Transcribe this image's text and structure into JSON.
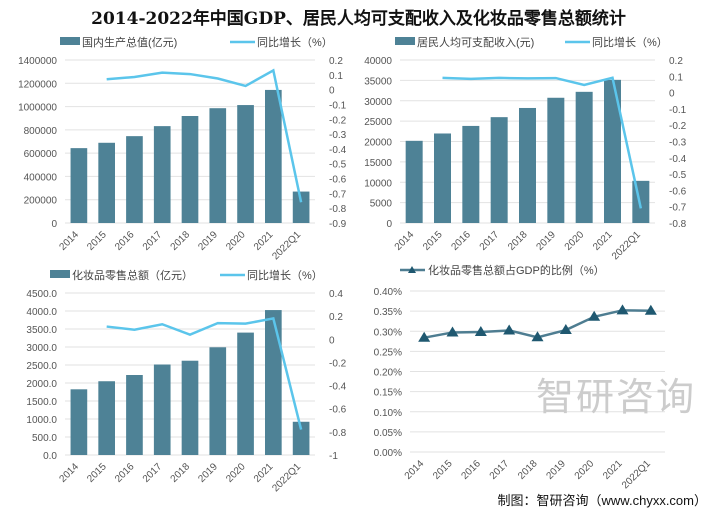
{
  "title": "2014-2022年中国GDP、居民人均可支配收入及化妆品零售总额统计",
  "credit": "制图：智研咨询（www.chyxx.com）",
  "watermark": "智研咨询",
  "colors": {
    "bar": "#4e8296",
    "line": "#5bc5eb",
    "ratio": "#4e7d91",
    "marker": "#1f5870"
  },
  "chart_data": [
    {
      "type": "bar+line",
      "categories": [
        "2014",
        "2015",
        "2016",
        "2017",
        "2018",
        "2019",
        "2020",
        "2021",
        "2022Q1"
      ],
      "bar_series": {
        "name": "国内生产总值(亿元)",
        "values": [
          643000,
          689000,
          746000,
          832000,
          919000,
          986000,
          1013000,
          1143000,
          270000
        ]
      },
      "line_series": {
        "name": "同比增长（%）",
        "values": [
          null,
          0.07,
          0.085,
          0.115,
          0.105,
          0.075,
          0.025,
          0.13,
          -0.76
        ]
      },
      "ylim": [
        0,
        1400000
      ],
      "yticks": [
        "0",
        "200000",
        "400000",
        "600000",
        "800000",
        "1000000",
        "1200000",
        "1400000"
      ],
      "y2lim": [
        -0.9,
        0.2
      ],
      "y2ticks": [
        "-0.9",
        "-0.8",
        "-0.7",
        "-0.6",
        "-0.5",
        "-0.4",
        "-0.3",
        "-0.2",
        "-0.1",
        "0",
        "0.1",
        "0.2"
      ]
    },
    {
      "type": "bar+line",
      "categories": [
        "2014",
        "2015",
        "2016",
        "2017",
        "2018",
        "2019",
        "2020",
        "2021",
        "2022Q1"
      ],
      "bar_series": {
        "name": "居民人均可支配收入(元)",
        "values": [
          20167,
          21966,
          23821,
          25974,
          28228,
          30733,
          32189,
          35128,
          10345
        ]
      },
      "line_series": {
        "name": "同比增长（%）",
        "values": [
          null,
          0.09,
          0.084,
          0.09,
          0.087,
          0.089,
          0.047,
          0.091,
          -0.71
        ]
      },
      "ylim": [
        0,
        40000
      ],
      "yticks": [
        "0",
        "5000",
        "10000",
        "15000",
        "20000",
        "25000",
        "30000",
        "35000",
        "40000"
      ],
      "y2lim": [
        -0.8,
        0.2
      ],
      "y2ticks": [
        "-0.8",
        "-0.7",
        "-0.6",
        "-0.5",
        "-0.4",
        "-0.3",
        "-0.2",
        "-0.1",
        "0",
        "0.1",
        "0.2"
      ]
    },
    {
      "type": "bar+line",
      "categories": [
        "2014",
        "2015",
        "2016",
        "2017",
        "2018",
        "2019",
        "2020",
        "2021",
        "2022Q1"
      ],
      "bar_series": {
        "name": "化妆品零售总额（亿元）",
        "values": [
          1825,
          2049,
          2222,
          2514,
          2619,
          2992,
          3400,
          4026,
          923
        ]
      },
      "line_series": {
        "name": "同比增长（%）",
        "values": [
          null,
          0.11,
          0.083,
          0.13,
          0.04,
          0.14,
          0.135,
          0.18,
          -0.78
        ]
      },
      "ylim": [
        0,
        4500
      ],
      "yticks": [
        "0.0",
        "500.0",
        "1000.0",
        "1500.0",
        "2000.0",
        "2500.0",
        "3000.0",
        "3500.0",
        "4000.0",
        "4500.0"
      ],
      "y2lim": [
        -1,
        0.4
      ],
      "y2ticks": [
        "-1",
        "-0.8",
        "-0.6",
        "-0.4",
        "-0.2",
        "0",
        "0.2",
        "0.4"
      ]
    },
    {
      "type": "line",
      "categories": [
        "2014",
        "2015",
        "2016",
        "2017",
        "2018",
        "2019",
        "2020",
        "2021",
        "2022Q1"
      ],
      "line_series": {
        "name": "化妆品零售总额占GDP的比例（%）",
        "values": [
          0.284,
          0.297,
          0.298,
          0.302,
          0.285,
          0.303,
          0.336,
          0.352,
          0.351
        ]
      },
      "ylim": [
        0,
        0.4
      ],
      "yticks": [
        "0.00%",
        "0.05%",
        "0.10%",
        "0.15%",
        "0.20%",
        "0.25%",
        "0.30%",
        "0.35%",
        "0.40%"
      ]
    }
  ]
}
